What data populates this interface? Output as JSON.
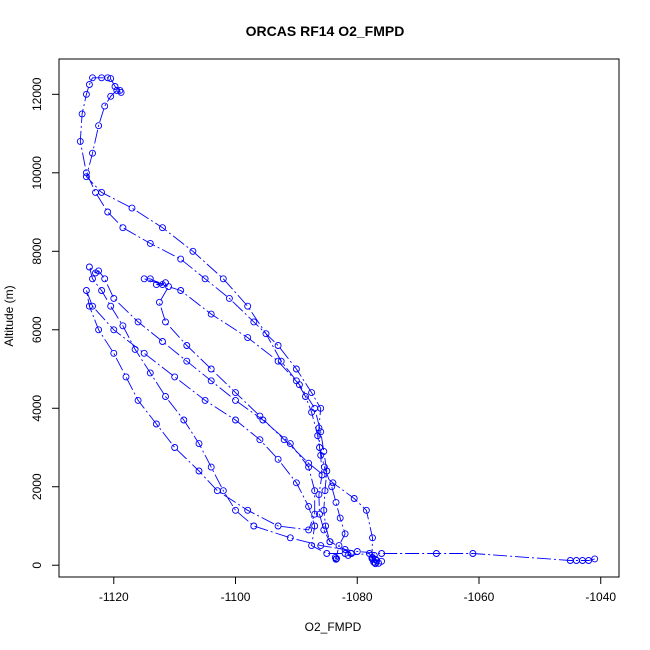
{
  "chart_data": {
    "type": "scatter",
    "title": "ORCAS RF14 O2_FMPD",
    "xlabel": "O2_FMPD",
    "ylabel": "Altitude (m)",
    "xlim": [
      -1129,
      -1037
    ],
    "ylim": [
      -300,
      12900
    ],
    "xticks": [
      -1120,
      -1100,
      -1080,
      -1060,
      -1040
    ],
    "yticks": [
      0,
      2000,
      4000,
      6000,
      8000,
      10000,
      12000
    ],
    "grid": false,
    "legend": "none",
    "color": "#0000ff",
    "series": [
      {
        "values": [
          [
            -1083.5,
            150
          ],
          [
            -1083.6,
            200
          ],
          [
            -1083.4,
            170
          ],
          [
            -1083.5,
            160
          ],
          [
            -1083,
            500
          ],
          [
            -1082,
            800
          ],
          [
            -1082.8,
            1200
          ],
          [
            -1083.5,
            1600
          ],
          [
            -1084.2,
            2000
          ],
          [
            -1085.4,
            2500
          ],
          [
            -1086.2,
            3000
          ],
          [
            -1086.3,
            3500
          ],
          [
            -1086,
            4000
          ],
          [
            -1087.5,
            4400
          ],
          [
            -1090,
            5000
          ],
          [
            -1093,
            5600
          ],
          [
            -1097,
            6200
          ],
          [
            -1101,
            6800
          ],
          [
            -1105,
            7300
          ],
          [
            -1109,
            7800
          ],
          [
            -1114,
            8200
          ],
          [
            -1118.5,
            8600
          ],
          [
            -1121,
            9000
          ],
          [
            -1123,
            9500
          ],
          [
            -1124.5,
            10000
          ],
          [
            -1125.5,
            10800
          ],
          [
            -1125.2,
            11500
          ],
          [
            -1124.5,
            12000
          ],
          [
            -1124,
            12250
          ],
          [
            -1123.5,
            12420
          ],
          [
            -1122,
            12420
          ],
          [
            -1121,
            12420
          ],
          [
            -1120.5,
            12400
          ],
          [
            -1119.8,
            12200
          ],
          [
            -1119,
            12100
          ],
          [
            -1118.8,
            12050
          ],
          [
            -1119.5,
            12100
          ],
          [
            -1120.5,
            11950
          ],
          [
            -1121.5,
            11700
          ],
          [
            -1122.5,
            11200
          ],
          [
            -1123.5,
            10500
          ],
          [
            -1124.5,
            9900
          ],
          [
            -1122,
            9500
          ],
          [
            -1117,
            9100
          ],
          [
            -1112,
            8600
          ],
          [
            -1107,
            8000
          ],
          [
            -1102,
            7300
          ],
          [
            -1098,
            6600
          ],
          [
            -1095,
            5900
          ],
          [
            -1092.5,
            5200
          ],
          [
            -1090,
            4700
          ],
          [
            -1088.5,
            4300
          ],
          [
            -1087.5,
            3900
          ],
          [
            -1086.5,
            3300
          ],
          [
            -1086,
            2800
          ],
          [
            -1085.8,
            2300
          ],
          [
            -1086.3,
            1800
          ],
          [
            -1086.2,
            1300
          ],
          [
            -1085.5,
            900
          ],
          [
            -1084.5,
            600
          ],
          [
            -1082,
            400
          ],
          [
            -1081,
            300
          ]
        ]
      },
      {
        "values": [
          [
            -1081,
            300
          ],
          [
            -1081.5,
            250
          ],
          [
            -1078,
            300
          ],
          [
            -1077.5,
            150
          ],
          [
            -1077.3,
            80
          ],
          [
            -1077,
            40
          ],
          [
            -1076.5,
            50
          ],
          [
            -1076,
            100
          ],
          [
            -1077,
            150
          ],
          [
            -1077.5,
            200
          ],
          [
            -1077.2,
            250
          ],
          [
            -1076.8,
            120
          ],
          [
            -1077.1,
            60
          ],
          [
            -1077.6,
            180
          ],
          [
            -1077.5,
            700
          ],
          [
            -1078.5,
            1400
          ],
          [
            -1080.5,
            1700
          ],
          [
            -1084,
            2100
          ],
          [
            -1088,
            2600
          ],
          [
            -1092,
            3200
          ],
          [
            -1096,
            3800
          ],
          [
            -1100,
            4400
          ],
          [
            -1104,
            5000
          ],
          [
            -1108,
            5600
          ],
          [
            -1111.5,
            6200
          ],
          [
            -1112.5,
            6700
          ],
          [
            -1111,
            7100
          ],
          [
            -1113,
            7150
          ],
          [
            -1111.5,
            7200
          ],
          [
            -1112,
            7150
          ],
          [
            -1114,
            7300
          ],
          [
            -1115,
            7300
          ],
          [
            -1109,
            7000
          ],
          [
            -1104,
            6400
          ],
          [
            -1098,
            5800
          ],
          [
            -1093,
            5200
          ],
          [
            -1089.5,
            4600
          ],
          [
            -1087,
            4000
          ],
          [
            -1086,
            3400
          ],
          [
            -1085.5,
            2900
          ],
          [
            -1085,
            2400
          ],
          [
            -1085.3,
            1900
          ],
          [
            -1085.5,
            1400
          ],
          [
            -1085.2,
            1000
          ],
          [
            -1084.5,
            600
          ]
        ]
      },
      {
        "values": [
          [
            -1041,
            160
          ],
          [
            -1042,
            120
          ],
          [
            -1043,
            120
          ],
          [
            -1044,
            120
          ],
          [
            -1045,
            120
          ],
          [
            -1061,
            300
          ],
          [
            -1067,
            300
          ],
          [
            -1076,
            300
          ],
          [
            -1080,
            350
          ],
          [
            -1086,
            500
          ],
          [
            -1091,
            700
          ],
          [
            -1097,
            1000
          ],
          [
            -1100,
            1400
          ],
          [
            -1102,
            1900
          ],
          [
            -1104,
            2500
          ],
          [
            -1106,
            3100
          ],
          [
            -1108.5,
            3700
          ],
          [
            -1111.5,
            4300
          ],
          [
            -1114,
            4900
          ],
          [
            -1116.5,
            5500
          ],
          [
            -1118.5,
            6100
          ],
          [
            -1120.5,
            6600
          ],
          [
            -1122,
            7000
          ],
          [
            -1123.5,
            7300
          ],
          [
            -1124,
            7600
          ],
          [
            -1123,
            7450
          ],
          [
            -1122.5,
            7500
          ],
          [
            -1121.5,
            7300
          ],
          [
            -1120,
            6800
          ],
          [
            -1116,
            6200
          ],
          [
            -1112,
            5700
          ],
          [
            -1108,
            5200
          ],
          [
            -1104,
            4700
          ],
          [
            -1100,
            4200
          ],
          [
            -1095.5,
            3700
          ],
          [
            -1091,
            3100
          ],
          [
            -1088,
            2500
          ],
          [
            -1087,
            1900
          ],
          [
            -1087,
            1300
          ],
          [
            -1088,
            900
          ],
          [
            -1093,
            1000
          ],
          [
            -1098,
            1400
          ],
          [
            -1103,
            1900
          ],
          [
            -1106,
            2400
          ],
          [
            -1110,
            3000
          ],
          [
            -1113,
            3600
          ],
          [
            -1116,
            4200
          ],
          [
            -1118,
            4800
          ],
          [
            -1120,
            5400
          ],
          [
            -1122.5,
            6000
          ],
          [
            -1124,
            6600
          ],
          [
            -1124.5,
            7000
          ],
          [
            -1123.5,
            6600
          ],
          [
            -1120,
            6000
          ],
          [
            -1115,
            5400
          ],
          [
            -1110,
            4800
          ],
          [
            -1105,
            4200
          ],
          [
            -1100,
            3700
          ],
          [
            -1096,
            3200
          ],
          [
            -1093,
            2700
          ],
          [
            -1090,
            2100
          ],
          [
            -1088,
            1500
          ],
          [
            -1087,
            1000
          ],
          [
            -1087.5,
            500
          ],
          [
            -1085,
            300
          ],
          [
            -1082,
            300
          ]
        ]
      }
    ]
  }
}
